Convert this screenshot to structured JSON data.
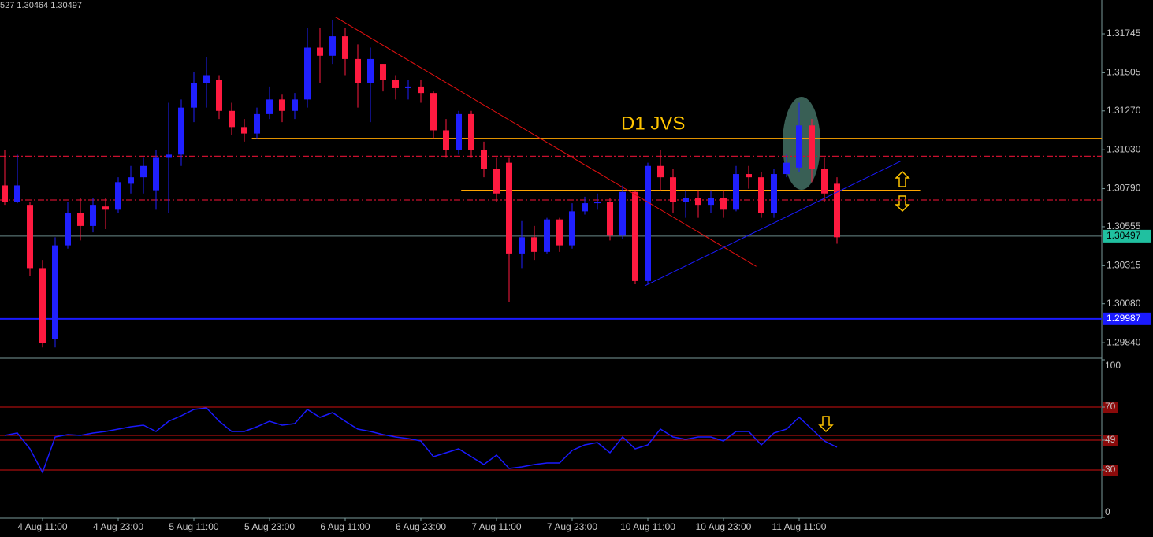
{
  "header": "527 1.30464 1.30497",
  "chart_data": [
    {
      "type": "candlestick",
      "annotation": "D1 JVS",
      "categories": [
        null,
        null,
        null,
        "4 Aug 11:00",
        null,
        null,
        null,
        null,
        null,
        "4 Aug 23:00",
        null,
        null,
        null,
        null,
        null,
        "5 Aug 11:00",
        null,
        null,
        null,
        null,
        null,
        "5 Aug 23:00",
        null,
        null,
        null,
        null,
        null,
        "6 Aug 11:00",
        null,
        null,
        null,
        null,
        null,
        "6 Aug 23:00",
        null,
        null,
        null,
        null,
        null,
        "7 Aug 11:00",
        null,
        null,
        null,
        null,
        null,
        "7 Aug 23:00",
        null,
        null,
        null,
        null,
        null,
        "10 Aug 11:00",
        null,
        null,
        null,
        null,
        null,
        "10 Aug 23:00",
        null,
        null,
        null,
        null,
        null,
        "11 Aug 11:00",
        null,
        null,
        null
      ],
      "open": [
        1.3081,
        1.3071,
        1.3069,
        1.303,
        1.2986,
        1.3044,
        1.3064,
        1.3056,
        1.3068,
        1.3066,
        1.3082,
        1.3086,
        1.3078,
        1.3098,
        1.31,
        1.3129,
        1.3144,
        1.3146,
        1.3127,
        1.3117,
        1.3113,
        1.3125,
        1.3134,
        1.3127,
        1.3134,
        1.3166,
        1.3161,
        1.3173,
        1.3159,
        1.3144,
        1.3156,
        1.3146,
        1.3141,
        1.3142,
        1.3138,
        1.3115,
        1.3103,
        1.3125,
        1.3103,
        1.3091,
        1.3095,
        1.3039,
        1.3049,
        1.304,
        1.306,
        1.3044,
        1.3065,
        1.307,
        1.3071,
        1.305,
        1.3077,
        1.3022,
        1.3093,
        1.3086,
        1.3071,
        1.3073,
        1.3069,
        1.3073,
        1.3066,
        1.3088,
        1.3086,
        1.3064,
        1.3088,
        1.3092,
        1.3118,
        1.3091,
        1.3082
      ],
      "high": [
        1.3103,
        1.31,
        1.3071,
        1.3035,
        1.3049,
        1.3071,
        1.3073,
        1.3073,
        1.3073,
        1.3086,
        1.3093,
        1.3098,
        1.3103,
        1.3132,
        1.3134,
        1.3151,
        1.316,
        1.3149,
        1.3132,
        1.3122,
        1.3129,
        1.3142,
        1.3137,
        1.3138,
        1.3178,
        1.3178,
        1.3183,
        1.3178,
        1.3168,
        1.3166,
        1.3156,
        1.3149,
        1.3146,
        1.3146,
        1.3139,
        1.3122,
        1.3127,
        1.3127,
        1.3108,
        1.3098,
        1.3098,
        1.3059,
        1.3056,
        1.3061,
        1.3061,
        1.307,
        1.3074,
        1.3076,
        1.3073,
        1.3081,
        1.3078,
        1.3095,
        1.3103,
        1.3091,
        1.3078,
        1.3078,
        1.3078,
        1.3078,
        1.3093,
        1.3093,
        1.3089,
        1.3091,
        1.31,
        1.3132,
        1.3122,
        1.3098,
        1.3086
      ],
      "low": [
        1.3069,
        1.307,
        1.3025,
        1.2981,
        1.2981,
        1.3042,
        1.3047,
        1.3052,
        1.3054,
        1.3064,
        1.3076,
        1.3076,
        1.3066,
        1.3064,
        1.3093,
        1.312,
        1.3129,
        1.3122,
        1.3112,
        1.3108,
        1.311,
        1.3122,
        1.312,
        1.3122,
        1.3129,
        1.3144,
        1.3156,
        1.3149,
        1.3129,
        1.312,
        1.3139,
        1.3134,
        1.3134,
        1.3132,
        1.311,
        1.3098,
        1.31,
        1.3098,
        1.3086,
        1.3071,
        1.3009,
        1.303,
        1.3035,
        1.3039,
        1.304,
        1.3042,
        1.3063,
        1.3066,
        1.3047,
        1.3048,
        1.302,
        1.302,
        1.3078,
        1.3064,
        1.3061,
        1.3061,
        1.3064,
        1.3061,
        1.3065,
        1.3079,
        1.3061,
        1.3061,
        1.3086,
        1.3089,
        1.3083,
        1.3071,
        1.3045
      ],
      "close": [
        1.3071,
        1.3081,
        1.303,
        1.2984,
        1.3044,
        1.3064,
        1.3056,
        1.3069,
        1.3066,
        1.3083,
        1.3086,
        1.3093,
        1.3098,
        1.31,
        1.3129,
        1.3144,
        1.3149,
        1.3127,
        1.3117,
        1.3113,
        1.3125,
        1.3134,
        1.3127,
        1.3134,
        1.3166,
        1.3161,
        1.3173,
        1.3159,
        1.3144,
        1.3159,
        1.3146,
        1.3141,
        1.3142,
        1.3138,
        1.3115,
        1.3103,
        1.3125,
        1.3103,
        1.3091,
        1.3076,
        1.3039,
        1.3049,
        1.304,
        1.306,
        1.3044,
        1.3065,
        1.307,
        1.3071,
        1.305,
        1.3077,
        1.3022,
        1.3093,
        1.3086,
        1.3071,
        1.3073,
        1.3069,
        1.3073,
        1.3066,
        1.3088,
        1.3086,
        1.3064,
        1.3088,
        1.3095,
        1.3118,
        1.3091,
        1.3076,
        1.3049
      ],
      "up_color": "#2020ff",
      "down_color": "#ff1a40",
      "ylim": [
        1.29753,
        1.31954
      ],
      "yticks": [
        1.31745,
        1.31505,
        {
          "value": 1.3127,
          "label": "1.31270"
        },
        {
          "value": 1.3103,
          "label": "1.31030"
        },
        {
          "value": 1.3079,
          "label": "1.30790"
        },
        1.30555,
        1.30315,
        {
          "value": 1.3008,
          "label": "1.30080"
        },
        {
          "value": 1.2984,
          "label": "1.29840"
        }
      ],
      "current_price": 1.30497,
      "hlines": [
        {
          "value": 1.311,
          "color": "#ffa500",
          "style": "solid",
          "from": 19.6
        },
        {
          "value": 1.3099,
          "color": "#c8102e",
          "style": "dashdot"
        },
        {
          "value": 1.3072,
          "color": "#c8102e",
          "style": "dashdot"
        },
        {
          "value": 1.3078,
          "color": "#ffa500",
          "style": "solid",
          "from": 36.2,
          "to": 72.6
        },
        {
          "value": 1.29987,
          "color": "#1a1aff",
          "style": "solid",
          "labeled": true
        }
      ],
      "trendlines": [
        {
          "x": [
            26.2,
            59.6
          ],
          "y": [
            1.3185,
            1.3031
          ],
          "color": "#e01010"
        },
        {
          "x": [
            50.75,
            71.06
          ],
          "y": [
            1.3019,
            1.3096
          ],
          "color": "#1a1aff"
        }
      ]
    },
    {
      "type": "line",
      "values": [
        52,
        53.5,
        43.5,
        28.5,
        51,
        52.5,
        52,
        53.5,
        54.5,
        56,
        57.5,
        58.5,
        54.5,
        61,
        64.5,
        68.5,
        69.5,
        61,
        54.5,
        54.5,
        57.5,
        61,
        58.5,
        59.5,
        68.5,
        63.5,
        66.5,
        61,
        56,
        54.5,
        52.5,
        51,
        50,
        48.5,
        38.5,
        41,
        43.5,
        38.5,
        33.5,
        39.5,
        31,
        32,
        33.5,
        34.5,
        34.5,
        42.5,
        46,
        47.5,
        41,
        51,
        43.5,
        46,
        56,
        51,
        49.5,
        51,
        51,
        48.5,
        54.5,
        54.5,
        46,
        53.5,
        56,
        63.5,
        56,
        48.5,
        44.5
      ],
      "color": "#1a1aff",
      "ylim": [
        0,
        100
      ],
      "yticks": [
        0,
        30,
        49,
        70,
        100
      ],
      "levels": [
        30,
        49,
        52,
        70
      ],
      "level_color": "#d01010"
    }
  ]
}
